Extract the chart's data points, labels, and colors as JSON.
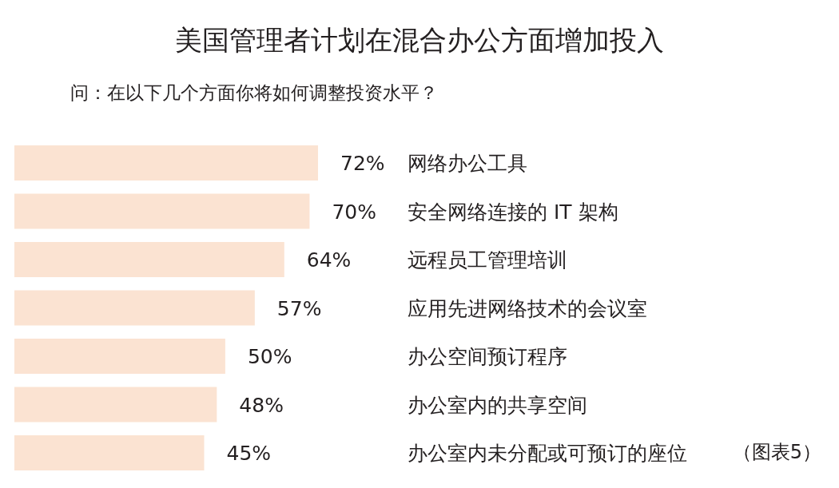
{
  "chart_data": {
    "type": "bar",
    "orientation": "horizontal",
    "title": "美国管理者计划在混合办公方面增加投入",
    "subtitle": "问：在以下几个方面你将如何调整投资水平？",
    "categories": [
      "网络办公工具",
      "安全网络连接的 IT 架构",
      "远程员工管理培训",
      "应用先进网络技术的会议室",
      "办公空间预订程序",
      "办公室内的共享空间",
      "办公室内未分配或可预订的座位"
    ],
    "values": [
      72,
      70,
      64,
      57,
      50,
      48,
      45
    ],
    "value_labels": [
      "72%",
      "70%",
      "64%",
      "57%",
      "50%",
      "48%",
      "45%"
    ],
    "color": "#fbe3d2",
    "annotations": [
      "（图表5）"
    ]
  }
}
